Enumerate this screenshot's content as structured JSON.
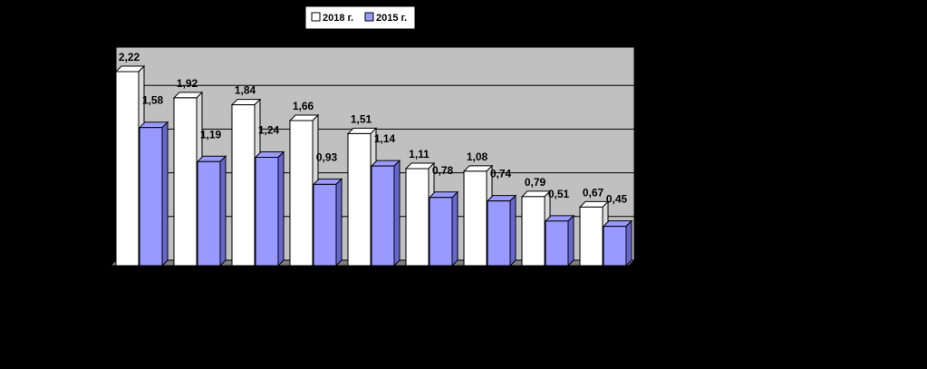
{
  "chart_data": {
    "type": "bar",
    "categories": [
      "",
      "",
      "",
      "",
      "",
      "",
      "",
      "",
      ""
    ],
    "series": [
      {
        "name": "2018 г.",
        "values": [
          2.22,
          1.92,
          1.84,
          1.66,
          1.51,
          1.11,
          1.08,
          0.79,
          0.67
        ],
        "labels": [
          "2,22",
          "1,92",
          "1,84",
          "1,66",
          "1,51",
          "1,11",
          "1,08",
          "0,79",
          "0,67"
        ],
        "color": "#FFFFFF"
      },
      {
        "name": "2015 г.",
        "values": [
          1.58,
          1.19,
          1.24,
          0.93,
          1.14,
          0.78,
          0.74,
          0.51,
          0.45
        ],
        "labels": [
          "1,58",
          "1,19",
          "1,24",
          "0,93",
          "1,14",
          "0,78",
          "0,74",
          "0,51",
          "0,45"
        ],
        "color": "#9999FF"
      }
    ],
    "ylim": [
      0,
      2.5
    ],
    "grid": true,
    "legend": "top",
    "three_d": true,
    "plot_background": "#C0C0C0",
    "outline_color": "#000000"
  }
}
